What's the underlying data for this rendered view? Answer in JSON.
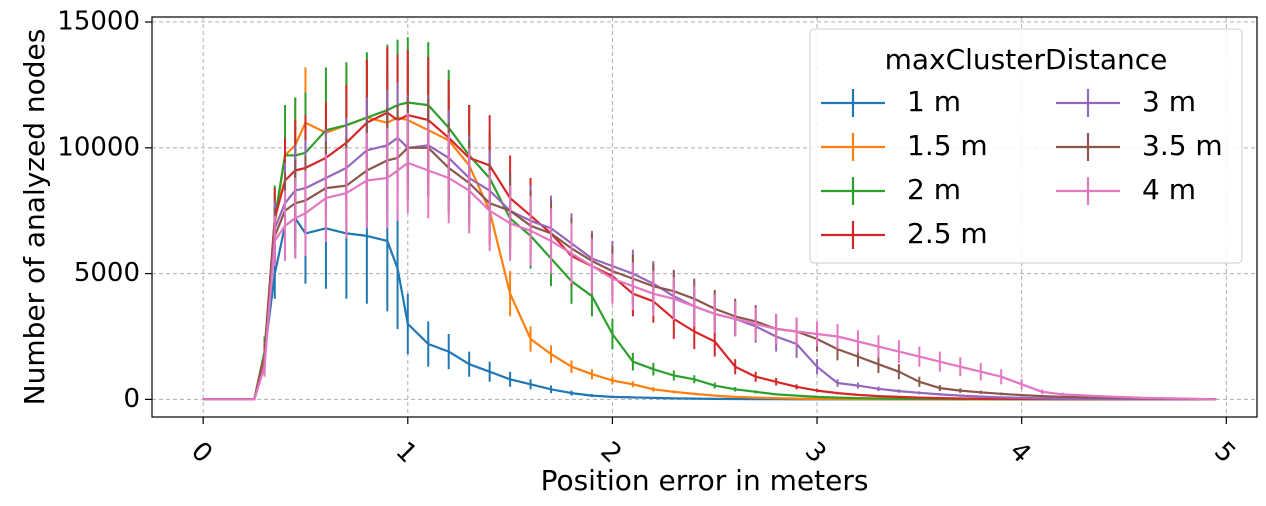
{
  "chart_data": {
    "type": "line",
    "xlabel": "Position error in meters",
    "ylabel": "Number of analyzed nodes",
    "xlim": [
      -0.25,
      5.15
    ],
    "ylim": [
      -700,
      15200
    ],
    "xticks": [
      0,
      1,
      2,
      3,
      4,
      5
    ],
    "xtick_labels": [
      "0",
      "1",
      "2",
      "3",
      "4",
      "5"
    ],
    "xtick_rotation": 45,
    "yticks": [
      0,
      5000,
      10000,
      15000
    ],
    "ytick_labels": [
      "0",
      "5000",
      "10000",
      "15000"
    ],
    "grid": true,
    "error_bars": true,
    "legend": {
      "title": "maxClusterDistance",
      "placement": "top-right",
      "columns": 2
    },
    "x": [
      0,
      0.25,
      0.3,
      0.35,
      0.4,
      0.45,
      0.5,
      0.6,
      0.7,
      0.8,
      0.9,
      0.95,
      1.0,
      1.1,
      1.2,
      1.3,
      1.4,
      1.5,
      1.6,
      1.7,
      1.8,
      1.9,
      2.0,
      2.1,
      2.2,
      2.3,
      2.4,
      2.5,
      2.6,
      2.7,
      2.8,
      2.9,
      3.0,
      3.1,
      3.2,
      3.3,
      3.4,
      3.5,
      3.6,
      3.7,
      3.8,
      3.9,
      4.0,
      4.1,
      4.2,
      4.4,
      4.6,
      4.8,
      4.95
    ],
    "series": [
      {
        "name": "1 m",
        "color": "#1f77b4",
        "values": [
          0,
          0,
          1800,
          5000,
          6900,
          7200,
          6600,
          6800,
          6600,
          6500,
          6300,
          5200,
          3000,
          2200,
          1900,
          1400,
          1100,
          800,
          600,
          400,
          250,
          150,
          100,
          80,
          60,
          40,
          30,
          20,
          15,
          10,
          8,
          5,
          4,
          3,
          2,
          2,
          1,
          1,
          1,
          1,
          1,
          0,
          0,
          0,
          0,
          0,
          0,
          0,
          0
        ],
        "errors": [
          0,
          0,
          600,
          1000,
          1400,
          1600,
          2000,
          2400,
          2600,
          2700,
          2800,
          2400,
          1200,
          900,
          700,
          500,
          400,
          300,
          200,
          150,
          100,
          60,
          40,
          30,
          20,
          15,
          10,
          8,
          6,
          4,
          3,
          2,
          2,
          1,
          1,
          1,
          0,
          0,
          0,
          0,
          0,
          0,
          0,
          0,
          0,
          0,
          0,
          0,
          0
        ]
      },
      {
        "name": "1.5 m",
        "color": "#ff7f0e",
        "values": [
          0,
          0,
          1800,
          7000,
          9700,
          10100,
          11000,
          10600,
          10900,
          11200,
          11000,
          11200,
          11100,
          10700,
          10300,
          9300,
          7500,
          4200,
          2400,
          1800,
          1300,
          1000,
          750,
          600,
          400,
          300,
          220,
          150,
          100,
          70,
          50,
          30,
          20,
          15,
          10,
          8,
          5,
          4,
          3,
          2,
          1,
          1,
          0,
          0,
          0,
          0,
          0,
          0,
          0
        ],
        "errors": [
          0,
          0,
          500,
          1200,
          1700,
          1900,
          2200,
          2100,
          2200,
          2300,
          2200,
          2200,
          2200,
          2100,
          1900,
          1700,
          1400,
          900,
          500,
          350,
          250,
          200,
          150,
          120,
          90,
          60,
          40,
          30,
          20,
          15,
          10,
          6,
          4,
          3,
          2,
          2,
          1,
          1,
          0,
          0,
          0,
          0,
          0,
          0,
          0,
          0,
          0,
          0,
          0
        ]
      },
      {
        "name": "2 m",
        "color": "#2ca02c",
        "values": [
          0,
          0,
          1900,
          7200,
          9700,
          9700,
          9800,
          10700,
          10900,
          11200,
          11500,
          11700,
          11800,
          11700,
          10800,
          9700,
          8800,
          7200,
          6500,
          5600,
          4700,
          4100,
          2600,
          1500,
          1200,
          950,
          800,
          550,
          400,
          300,
          200,
          150,
          100,
          70,
          50,
          35,
          25,
          20,
          15,
          10,
          8,
          5,
          3,
          2,
          1,
          1,
          0,
          0,
          0
        ],
        "errors": [
          0,
          0,
          600,
          1300,
          2000,
          2300,
          2400,
          2500,
          2500,
          2600,
          2600,
          2600,
          2600,
          2500,
          2300,
          2000,
          1800,
          1500,
          1300,
          1100,
          900,
          800,
          600,
          350,
          250,
          200,
          160,
          120,
          90,
          60,
          40,
          30,
          20,
          15,
          10,
          8,
          6,
          4,
          3,
          2,
          2,
          1,
          1,
          0,
          0,
          0,
          0,
          0,
          0
        ]
      },
      {
        "name": "2.5 m",
        "color": "#d62728",
        "values": [
          0,
          0,
          1700,
          7200,
          8700,
          9100,
          9200,
          9600,
          10200,
          11000,
          11400,
          11100,
          11300,
          11100,
          10400,
          9600,
          9300,
          8000,
          7300,
          6600,
          5700,
          5300,
          4900,
          4200,
          3900,
          3200,
          2700,
          2300,
          1300,
          900,
          700,
          500,
          350,
          250,
          180,
          130,
          100,
          70,
          50,
          35,
          25,
          18,
          12,
          8,
          5,
          3,
          2,
          1,
          0
        ],
        "errors": [
          0,
          0,
          500,
          1200,
          1700,
          2000,
          2100,
          2200,
          2300,
          2500,
          2600,
          2600,
          2600,
          2500,
          2300,
          2100,
          2000,
          1700,
          1500,
          1300,
          1200,
          1100,
          1000,
          900,
          850,
          800,
          700,
          600,
          300,
          200,
          150,
          100,
          70,
          50,
          40,
          30,
          20,
          15,
          10,
          8,
          6,
          4,
          3,
          2,
          1,
          1,
          0,
          0,
          0
        ]
      },
      {
        "name": "3 m",
        "color": "#9467bd",
        "values": [
          0,
          0,
          1500,
          6800,
          7800,
          8300,
          8400,
          8800,
          9200,
          9900,
          10100,
          10400,
          10000,
          10100,
          9600,
          8800,
          8300,
          7500,
          7100,
          6800,
          6200,
          5600,
          5300,
          5000,
          4600,
          4100,
          3700,
          3400,
          3200,
          2900,
          2500,
          2200,
          1300,
          650,
          550,
          420,
          330,
          260,
          200,
          150,
          110,
          80,
          60,
          40,
          25,
          15,
          8,
          4,
          0
        ],
        "errors": [
          0,
          0,
          400,
          1100,
          1600,
          1800,
          1900,
          1950,
          2000,
          2100,
          2200,
          2200,
          2100,
          2000,
          1900,
          1700,
          1600,
          1500,
          1400,
          1300,
          1200,
          1100,
          1000,
          950,
          900,
          850,
          800,
          750,
          700,
          650,
          600,
          550,
          300,
          150,
          120,
          90,
          70,
          60,
          50,
          40,
          30,
          20,
          15,
          10,
          8,
          5,
          3,
          2,
          0
        ]
      },
      {
        "name": "3.5 m",
        "color": "#8c564b",
        "values": [
          0,
          0,
          1400,
          6500,
          7500,
          7800,
          7900,
          8400,
          8500,
          9100,
          9500,
          9600,
          10000,
          10000,
          9200,
          8600,
          7800,
          7500,
          6900,
          6600,
          6000,
          5500,
          5100,
          4800,
          4500,
          4300,
          4000,
          3600,
          3300,
          3100,
          2800,
          2700,
          2400,
          2000,
          1700,
          1400,
          1100,
          700,
          450,
          350,
          280,
          220,
          170,
          130,
          100,
          70,
          40,
          20,
          0
        ],
        "errors": [
          0,
          0,
          400,
          1100,
          1500,
          1700,
          1800,
          1850,
          1900,
          2000,
          2100,
          2100,
          2000,
          1950,
          1800,
          1700,
          1600,
          1500,
          1400,
          1300,
          1200,
          1100,
          1000,
          950,
          900,
          850,
          800,
          750,
          700,
          650,
          600,
          550,
          500,
          450,
          400,
          350,
          300,
          200,
          120,
          90,
          70,
          55,
          45,
          35,
          25,
          18,
          10,
          6,
          0
        ]
      },
      {
        "name": "4 m",
        "color": "#e377c2",
        "values": [
          0,
          0,
          1300,
          6300,
          6900,
          7200,
          7400,
          8000,
          8200,
          8700,
          8800,
          9100,
          9400,
          9100,
          8800,
          8300,
          7500,
          7000,
          6700,
          6300,
          5800,
          5300,
          4800,
          4500,
          4200,
          4000,
          3700,
          3400,
          3200,
          3000,
          2800,
          2700,
          2600,
          2500,
          2300,
          2100,
          1900,
          1700,
          1500,
          1300,
          1100,
          900,
          600,
          300,
          200,
          120,
          60,
          30,
          0
        ],
        "errors": [
          0,
          0,
          400,
          1000,
          1400,
          1600,
          1700,
          1750,
          1800,
          1900,
          2000,
          2000,
          2000,
          1900,
          1800,
          1700,
          1600,
          1500,
          1400,
          1300,
          1200,
          1100,
          1000,
          950,
          900,
          850,
          800,
          750,
          700,
          650,
          600,
          550,
          500,
          500,
          450,
          450,
          450,
          400,
          400,
          380,
          350,
          300,
          200,
          100,
          70,
          40,
          20,
          10,
          0
        ]
      }
    ]
  }
}
